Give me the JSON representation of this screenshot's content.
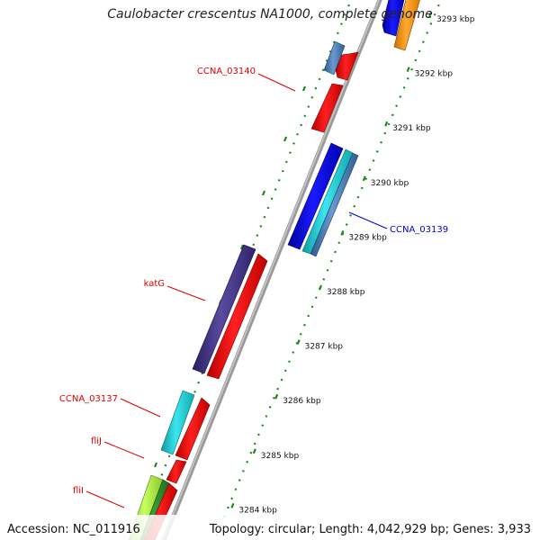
{
  "title": "Caulobacter crescentus NA1000, complete genome",
  "footer": {
    "accession": "Accession: NC_011916",
    "summary": "Topology: circular; Length: 4,042,929 bp; Genes: 3,933"
  },
  "ticks": [
    {
      "label": "3293 kbp"
    },
    {
      "label": "3292 kbp"
    },
    {
      "label": "3291 kbp"
    },
    {
      "label": "3290 kbp"
    },
    {
      "label": "3289 kbp"
    },
    {
      "label": "3288 kbp"
    },
    {
      "label": "3287 kbp"
    },
    {
      "label": "3286 kbp"
    },
    {
      "label": "3285 kbp"
    },
    {
      "label": "3284 kbp"
    }
  ],
  "gene_labels": [
    {
      "text": "CCNA_03140",
      "color": "#e00000"
    },
    {
      "text": "CCNA_03139",
      "color": "#0000cc"
    },
    {
      "text": "katG",
      "color": "#e00000"
    },
    {
      "text": "CCNA_03137",
      "color": "#e00000"
    },
    {
      "text": "fliJ",
      "color": "#e00000"
    },
    {
      "text": "fliI",
      "color": "#e00000"
    }
  ],
  "colors": {
    "backbone": "#8a8a8a",
    "tick_dots": "#1a8a1a",
    "red": "#ff1a1a",
    "blue": "#0a0af0",
    "cyan": "#22d0d8",
    "steel": "#4a80b8",
    "purple": "#4a3a8a",
    "orange": "#ff9a1a",
    "green": "#2e8a2e",
    "lime": "#b0f040"
  }
}
